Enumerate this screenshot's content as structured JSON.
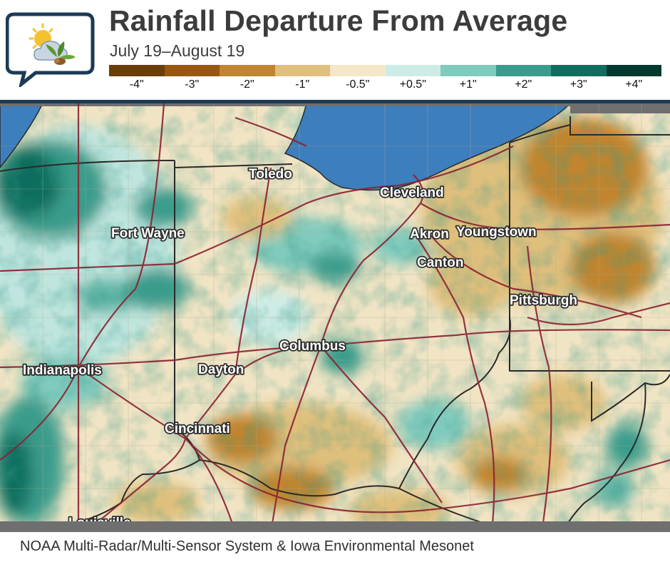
{
  "header": {
    "title": "Rainfall Departure From Average",
    "subtitle": "July 19–August 19"
  },
  "legend": {
    "items": [
      {
        "label": "-4\"",
        "color": "#6b3d07"
      },
      {
        "label": "-3\"",
        "color": "#98570f"
      },
      {
        "label": "-2\"",
        "color": "#c0852f"
      },
      {
        "label": "-1\"",
        "color": "#dfbf7b"
      },
      {
        "label": "-0.5\"",
        "color": "#f5e8c8"
      },
      {
        "label": "+0.5\"",
        "color": "#cdece6"
      },
      {
        "label": "+1\"",
        "color": "#7fcbbd"
      },
      {
        "label": "+2\"",
        "color": "#3a9c8c"
      },
      {
        "label": "+3\"",
        "color": "#0f6e5e"
      },
      {
        "label": "+4\"",
        "color": "#04392f"
      }
    ]
  },
  "map": {
    "cities": [
      "Toledo",
      "Cleveland",
      "Fort Wayne",
      "Akron",
      "Youngstown",
      "Canton",
      "Pittsburgh",
      "Columbus",
      "Indianapolis",
      "Dayton",
      "Cincinnati",
      "Louisville"
    ],
    "colors": {
      "lake": "#3d7ebd",
      "roads": "#8b2131",
      "borders": "#2a2a2a",
      "frame": "#1b3a55"
    }
  },
  "footer": {
    "source": "NOAA Multi-Radar/Multi-Sensor System & Iowa Environmental Mesonet"
  }
}
